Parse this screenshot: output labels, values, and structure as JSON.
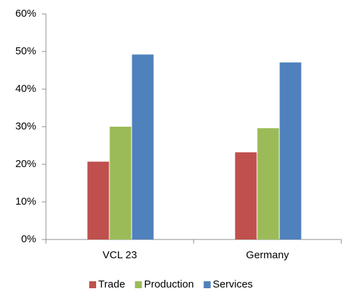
{
  "chart_data": {
    "type": "bar",
    "categories": [
      "VCL 23",
      "Germany"
    ],
    "series": [
      {
        "name": "Trade",
        "color": "#c0504d",
        "values": [
          20.7,
          23.2
        ]
      },
      {
        "name": "Production",
        "color": "#9bbb59",
        "values": [
          30,
          29.6
        ]
      },
      {
        "name": "Services",
        "color": "#4f81bd",
        "values": [
          49.2,
          47.1
        ]
      }
    ],
    "ylim": [
      0,
      60
    ],
    "yticks": [
      {
        "value": 0,
        "label": "0%"
      },
      {
        "value": 10,
        "label": "10%"
      },
      {
        "value": 20,
        "label": "20%"
      },
      {
        "value": 30,
        "label": "30%"
      },
      {
        "value": 40,
        "label": "40%"
      },
      {
        "value": 50,
        "label": "50%"
      },
      {
        "value": 60,
        "label": "60%"
      }
    ],
    "grid": false,
    "legend": "bottom"
  }
}
